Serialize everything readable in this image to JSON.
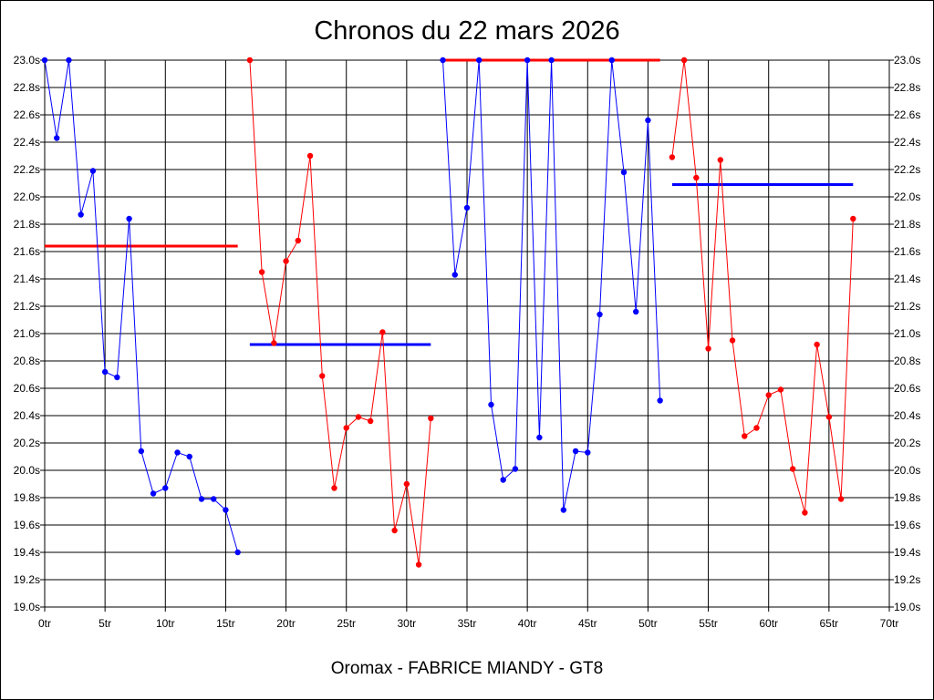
{
  "chart_data": {
    "type": "line",
    "title": "Chronos du 22 mars 2026",
    "subtitle": "Oromax - FABRICE MIANDY - GT8",
    "xlim": [
      0,
      70
    ],
    "ylim": [
      19.0,
      23.0
    ],
    "x_ticks": [
      0,
      5,
      10,
      15,
      20,
      25,
      30,
      35,
      40,
      45,
      50,
      55,
      60,
      65,
      70
    ],
    "x_tick_labels": [
      "0tr",
      "5tr",
      "10tr",
      "15tr",
      "20tr",
      "25tr",
      "30tr",
      "35tr",
      "40tr",
      "45tr",
      "50tr",
      "55tr",
      "60tr",
      "65tr",
      "70tr"
    ],
    "y_ticks": [
      19.0,
      19.2,
      19.4,
      19.6,
      19.8,
      20.0,
      20.2,
      20.4,
      20.6,
      20.8,
      21.0,
      21.2,
      21.4,
      21.6,
      21.8,
      22.0,
      22.2,
      22.4,
      22.6,
      22.8,
      23.0
    ],
    "y_tick_labels": [
      "19.0s",
      "19.2s",
      "19.4s",
      "19.6s",
      "19.8s",
      "20.0s",
      "20.2s",
      "20.4s",
      "20.6s",
      "20.8s",
      "21.0s",
      "21.2s",
      "21.4s",
      "21.6s",
      "21.8s",
      "22.0s",
      "22.2s",
      "22.4s",
      "22.6s",
      "22.8s",
      "23.0s"
    ],
    "grid": true,
    "series": [
      {
        "color": "#0000ff",
        "x": [
          0,
          1,
          2,
          3,
          4,
          5,
          6,
          7,
          8,
          9,
          10,
          11,
          12,
          13,
          14,
          15,
          16
        ],
        "y": [
          23.0,
          22.43,
          23.0,
          21.87,
          22.19,
          20.72,
          20.68,
          21.84,
          20.14,
          19.83,
          19.87,
          20.13,
          20.1,
          19.79,
          19.79,
          19.71,
          19.4
        ]
      },
      {
        "color": "#ff0000",
        "x": [
          17,
          18,
          19,
          20,
          21,
          22,
          23,
          24,
          25,
          26,
          27,
          28,
          29,
          30,
          31,
          32
        ],
        "y": [
          23.0,
          21.45,
          20.93,
          21.53,
          21.68,
          22.3,
          20.69,
          19.87,
          20.31,
          20.39,
          20.36,
          21.01,
          19.56,
          19.9,
          19.31,
          20.38
        ]
      },
      {
        "color": "#0000ff",
        "x": [
          33,
          34,
          35,
          36,
          37,
          38,
          39,
          40,
          41,
          42,
          43,
          44,
          45,
          46,
          47,
          48,
          49,
          50,
          51
        ],
        "y": [
          23.0,
          21.43,
          21.92,
          23.0,
          20.48,
          19.93,
          20.01,
          23.0,
          20.24,
          23.0,
          19.71,
          20.14,
          20.13,
          21.14,
          23.0,
          22.18,
          21.16,
          22.56,
          20.51
        ]
      },
      {
        "color": "#ff0000",
        "x": [
          52,
          53,
          54,
          55,
          56,
          57,
          58,
          59,
          60,
          61,
          62,
          63,
          64,
          65,
          66,
          67
        ],
        "y": [
          22.29,
          23.0,
          22.14,
          20.89,
          22.27,
          20.95,
          20.25,
          20.31,
          20.55,
          20.59,
          20.01,
          19.69,
          20.92,
          20.39,
          19.79,
          21.84
        ]
      }
    ],
    "average_lines": [
      {
        "color": "#ff0000",
        "x": [
          0,
          16
        ],
        "y": 21.64
      },
      {
        "color": "#0000ff",
        "x": [
          17,
          32
        ],
        "y": 20.92
      },
      {
        "color": "#ff0000",
        "x": [
          33,
          51
        ],
        "y": 23.0
      },
      {
        "color": "#0000ff",
        "x": [
          52,
          67
        ],
        "y": 22.09
      }
    ]
  }
}
